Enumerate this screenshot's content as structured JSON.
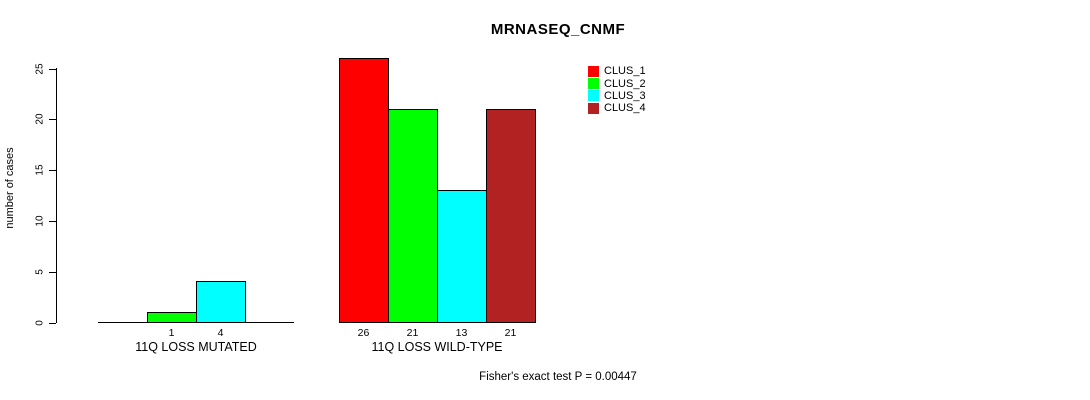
{
  "chart_data": {
    "type": "bar",
    "title": "MRNASEQ_CNMF",
    "ylabel": "number of cases",
    "xlabel": "",
    "ylim": [
      0,
      26
    ],
    "yticks": [
      0,
      5,
      10,
      15,
      20,
      25
    ],
    "grid": false,
    "legend_position": "top-right",
    "legend": [
      {
        "name": "CLUS_1",
        "color": "#FF0000"
      },
      {
        "name": "CLUS_2",
        "color": "#00FF00"
      },
      {
        "name": "CLUS_3",
        "color": "#00FFFF"
      },
      {
        "name": "CLUS_4",
        "color": "#B22222"
      }
    ],
    "groups": [
      {
        "label": "11Q LOSS MUTATED",
        "categories": [
          "CLUS_1",
          "CLUS_2",
          "CLUS_3",
          "CLUS_4"
        ],
        "values": [
          0,
          1,
          4,
          0
        ],
        "bar_labels": [
          "",
          "1",
          "4",
          ""
        ]
      },
      {
        "label": "11Q LOSS WILD-TYPE",
        "categories": [
          "CLUS_1",
          "CLUS_2",
          "CLUS_3",
          "CLUS_4"
        ],
        "values": [
          26,
          21,
          13,
          21
        ],
        "bar_labels": [
          "26",
          "21",
          "13",
          "21"
        ]
      }
    ],
    "footer": "Fisher's exact test P = 0.00447"
  }
}
